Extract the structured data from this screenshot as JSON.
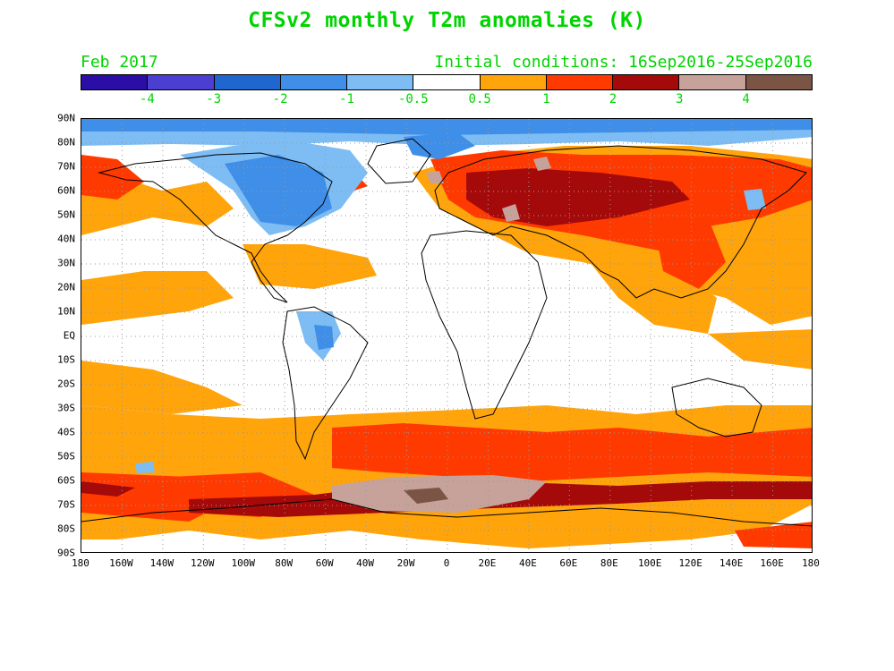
{
  "title": "CFSv2 monthly T2m anomalies (K)",
  "valid_month": "Feb 2017",
  "initial_conditions": "Initial conditions: 16Sep2016-25Sep2016",
  "colorbar": {
    "colors": [
      "#2a0ea5",
      "#4a3fd1",
      "#1f66cf",
      "#3f8ee8",
      "#7dbdf4",
      "#ffffff",
      "#ffa40a",
      "#ff3a00",
      "#a50a0a",
      "#c6a29a",
      "#7a5546"
    ],
    "labels": [
      "-4",
      "-3",
      "-2",
      "-1",
      "-0.5",
      "0.5",
      "1",
      "2",
      "3",
      "4"
    ]
  },
  "axes": {
    "lat_labels": [
      "90N",
      "80N",
      "70N",
      "60N",
      "50N",
      "40N",
      "30N",
      "20N",
      "10N",
      "EQ",
      "10S",
      "20S",
      "30S",
      "40S",
      "50S",
      "60S",
      "70S",
      "80S",
      "90S"
    ],
    "lon_labels": [
      "180",
      "160W",
      "140W",
      "120W",
      "100W",
      "80W",
      "60W",
      "40W",
      "20W",
      "0",
      "20E",
      "40E",
      "60E",
      "80E",
      "100E",
      "120E",
      "140E",
      "160E",
      "180"
    ]
  },
  "colors": {
    "text_accent": "#00d400",
    "coast": "#000000",
    "grid": "#999999"
  }
}
